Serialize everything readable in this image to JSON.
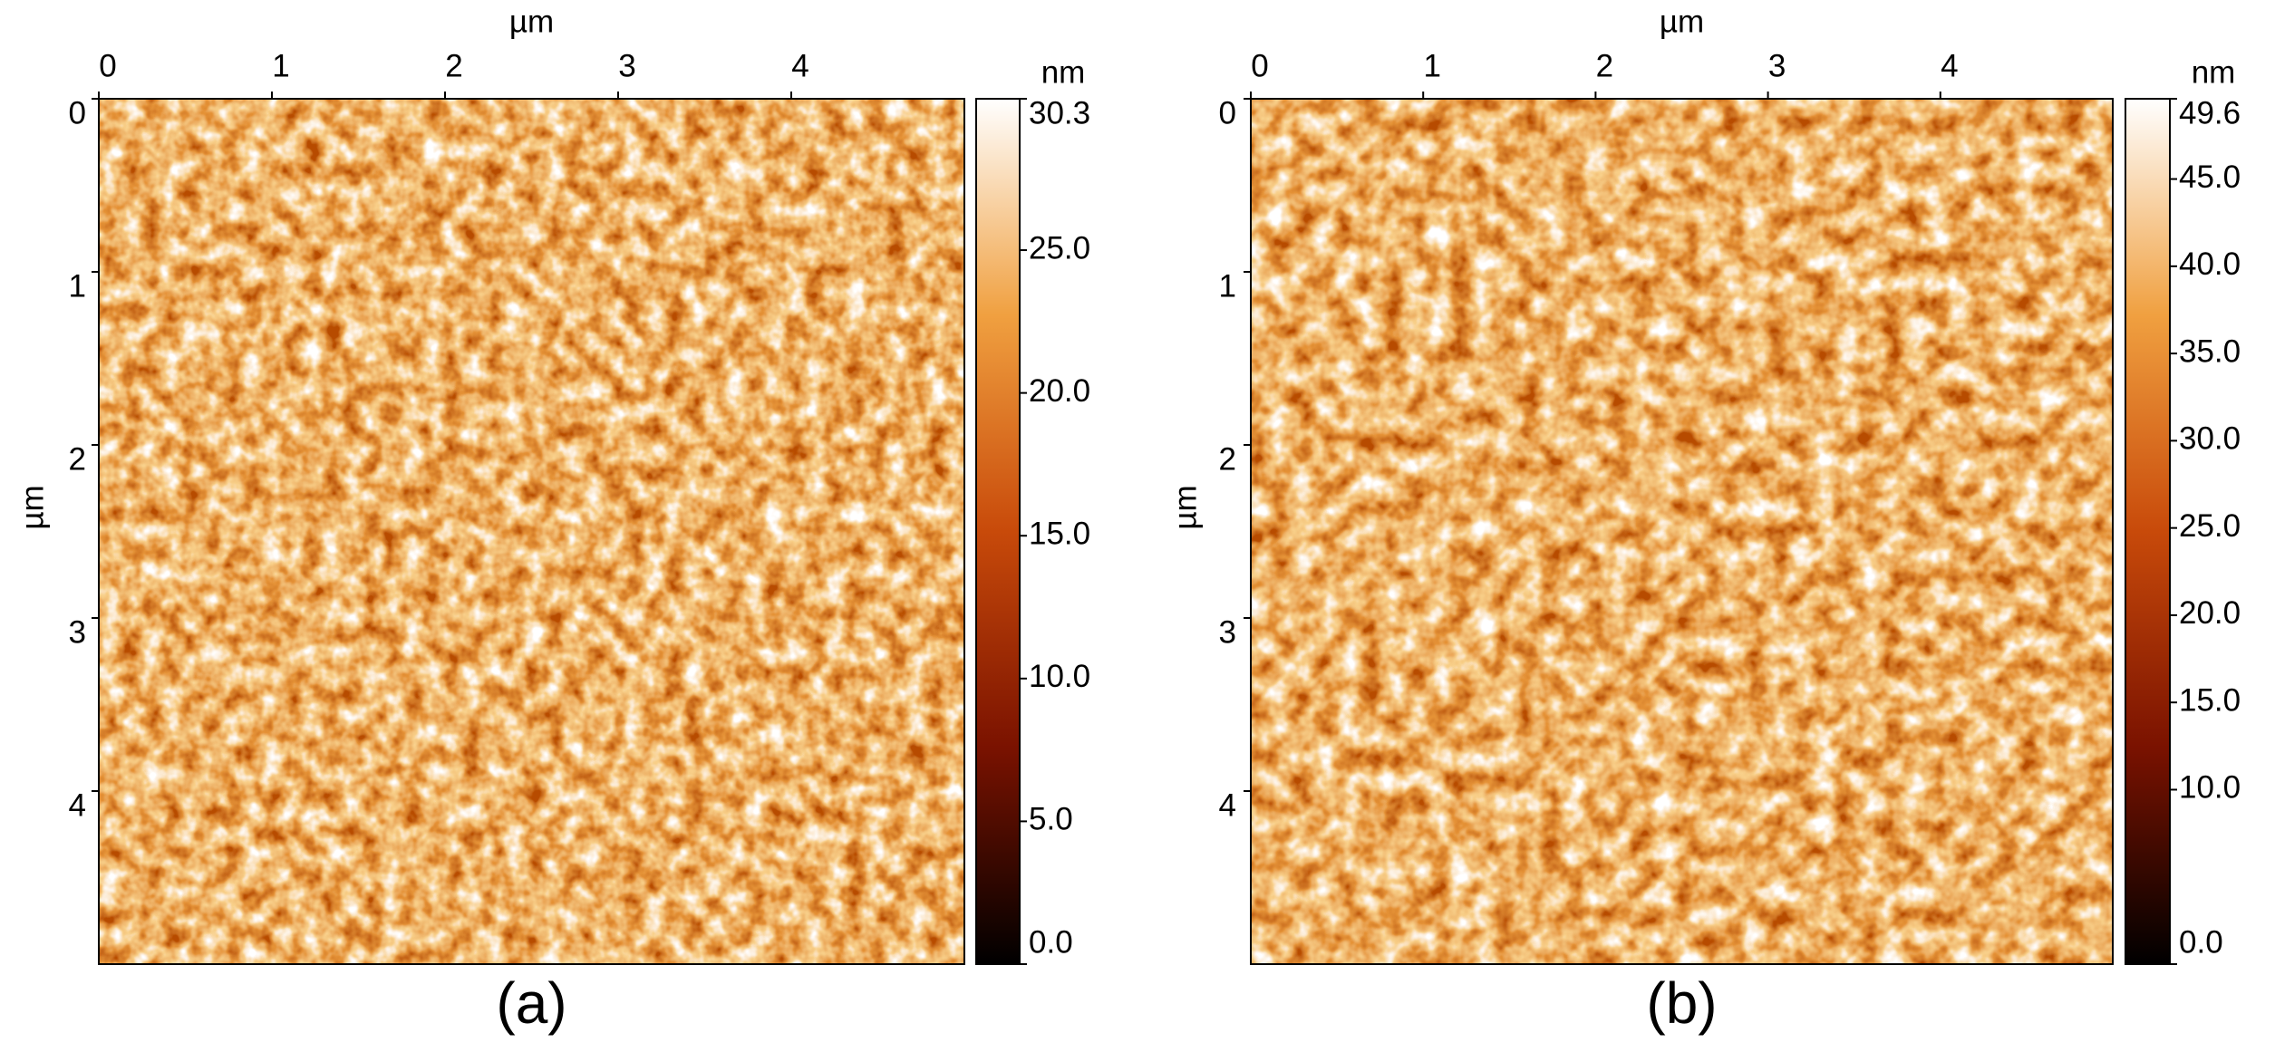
{
  "chart_data": [
    {
      "type": "image",
      "caption": "(a)",
      "x_label": "µm",
      "y_label": "µm",
      "xlim": [
        0,
        5
      ],
      "xticks": [
        0,
        1,
        2,
        3,
        4
      ],
      "ylim": [
        0,
        5
      ],
      "yticks": [
        0,
        1,
        2,
        3,
        4
      ],
      "colorbar_label": "nm",
      "zlim": [
        0,
        30.3
      ],
      "zticks": [
        {
          "value": 0,
          "label": "0.0"
        },
        {
          "value": 5,
          "label": "5.0"
        },
        {
          "value": 10,
          "label": "10.0"
        },
        {
          "value": 15,
          "label": "15.0"
        },
        {
          "value": 20,
          "label": "20.0"
        },
        {
          "value": 25,
          "label": "25.0"
        },
        30.3
      ],
      "colormap": [
        "#000000",
        "#7a1200",
        "#c84a0a",
        "#f0a040",
        "#ffffff"
      ]
    },
    {
      "type": "image",
      "caption": "(b)",
      "x_label": "µm",
      "y_label": "µm",
      "xlim": [
        0,
        5
      ],
      "xticks": [
        0,
        1,
        2,
        3,
        4
      ],
      "ylim": [
        0,
        5
      ],
      "yticks": [
        0,
        1,
        2,
        3,
        4
      ],
      "colorbar_label": "nm",
      "zlim": [
        0,
        49.6
      ],
      "zticks": [
        {
          "value": 0,
          "label": "0.0"
        },
        {
          "value": 10,
          "label": "10.0"
        },
        {
          "value": 15,
          "label": "15.0"
        },
        {
          "value": 20,
          "label": "20.0"
        },
        {
          "value": 25,
          "label": "25.0"
        },
        {
          "value": 30,
          "label": "30.0"
        },
        {
          "value": 35,
          "label": "35.0"
        },
        {
          "value": 40,
          "label": "40.0"
        },
        {
          "value": 45,
          "label": "45.0"
        },
        49.6
      ],
      "colormap": [
        "#000000",
        "#7a1200",
        "#c84a0a",
        "#f0a040",
        "#ffffff"
      ]
    }
  ]
}
